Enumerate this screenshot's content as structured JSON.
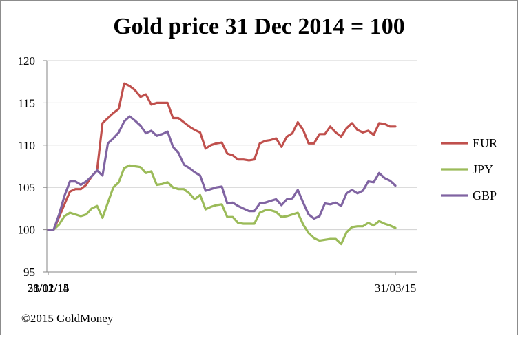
{
  "chart_data": {
    "type": "line",
    "title": "Gold price 31 Dec 2014 = 100",
    "xlabel": "",
    "ylabel": "",
    "ylim": [
      95,
      120
    ],
    "yticks": [
      95,
      100,
      105,
      110,
      115,
      120
    ],
    "x_tick_labels": [
      "31/12/14",
      "31/01/15",
      "28/02/15",
      "31/03/15"
    ],
    "x": [
      "31/12/14",
      "01/01/15",
      "02/01/15",
      "05/01/15",
      "06/01/15",
      "07/01/15",
      "08/01/15",
      "09/01/15",
      "12/01/15",
      "13/01/15",
      "14/01/15",
      "15/01/15",
      "16/01/15",
      "19/01/15",
      "20/01/15",
      "21/01/15",
      "22/01/15",
      "23/01/15",
      "26/01/15",
      "27/01/15",
      "28/01/15",
      "29/01/15",
      "30/01/15",
      "02/02/15",
      "03/02/15",
      "04/02/15",
      "05/02/15",
      "06/02/15",
      "09/02/15",
      "10/02/15",
      "11/02/15",
      "12/02/15",
      "13/02/15",
      "16/02/15",
      "17/02/15",
      "18/02/15",
      "19/02/15",
      "20/02/15",
      "23/02/15",
      "24/02/15",
      "25/02/15",
      "26/02/15",
      "27/02/15",
      "02/03/15",
      "03/03/15",
      "04/03/15",
      "05/03/15",
      "06/03/15",
      "09/03/15",
      "10/03/15",
      "11/03/15",
      "12/03/15",
      "13/03/15",
      "16/03/15",
      "17/03/15",
      "18/03/15",
      "19/03/15",
      "20/03/15",
      "23/03/15",
      "24/03/15",
      "25/03/15",
      "26/03/15",
      "27/03/15",
      "30/03/15",
      "31/03/15"
    ],
    "series": [
      {
        "name": "EUR",
        "color": "#c0504d",
        "values": [
          100,
          100,
          101.5,
          103,
          104.5,
          104.8,
          104.8,
          105.3,
          106.3,
          107,
          112.6,
          113.2,
          113.8,
          114.3,
          117.3,
          117,
          116.5,
          115.7,
          116,
          114.8,
          115,
          115,
          115,
          113.2,
          113.2,
          112.7,
          112.2,
          111.8,
          111.5,
          109.6,
          110,
          110.2,
          110.3,
          109,
          108.8,
          108.3,
          108.3,
          108.2,
          108.3,
          110.2,
          110.5,
          110.6,
          110.8,
          109.8,
          111,
          111.4,
          112.7,
          111.8,
          110.2,
          110.2,
          111.3,
          111.3,
          112.2,
          111.5,
          111,
          112,
          112.6,
          111.8,
          111.5,
          111.7,
          111.2,
          112.6,
          112.5,
          112.2,
          112.2
        ]
      },
      {
        "name": "JPY",
        "color": "#9bbb59",
        "values": [
          100,
          100,
          100.6,
          101.6,
          102,
          101.8,
          101.6,
          101.8,
          102.5,
          102.8,
          101.4,
          103.2,
          105,
          105.6,
          107.3,
          107.6,
          107.5,
          107.4,
          106.7,
          106.9,
          105.3,
          105.4,
          105.6,
          105,
          104.8,
          104.8,
          104.3,
          103.6,
          104.1,
          102.4,
          102.7,
          102.9,
          103,
          101.5,
          101.5,
          100.8,
          100.7,
          100.7,
          100.7,
          102,
          102.3,
          102.3,
          102.1,
          101.5,
          101.6,
          101.8,
          102,
          100.6,
          99.6,
          99,
          98.7,
          98.8,
          98.9,
          98.9,
          98.3,
          99.7,
          100.3,
          100.4,
          100.4,
          100.8,
          100.5,
          101,
          100.7,
          100.5,
          100.2
        ]
      },
      {
        "name": "GBP",
        "color": "#8064a2",
        "values": [
          100,
          100,
          101.8,
          104,
          105.7,
          105.7,
          105.3,
          105.7,
          106.3,
          107,
          106.4,
          110.2,
          110.8,
          111.5,
          112.8,
          113.4,
          112.9,
          112.3,
          111.4,
          111.7,
          111.1,
          111.3,
          111.6,
          109.8,
          109.1,
          107.7,
          107.3,
          106.8,
          106.4,
          104.6,
          104.8,
          105,
          105.1,
          103.1,
          103.2,
          102.8,
          102.5,
          102.2,
          102.2,
          103.1,
          103.2,
          103.4,
          103.6,
          102.9,
          103.6,
          103.7,
          104.7,
          103.2,
          101.8,
          101.3,
          101.6,
          103.1,
          103,
          103.2,
          102.8,
          104.3,
          104.7,
          104.3,
          104.6,
          105.7,
          105.6,
          106.7,
          106.1,
          105.8,
          105.2
        ]
      }
    ],
    "legend_position": "right",
    "grid": true
  },
  "copyright": "©2015 GoldMoney"
}
